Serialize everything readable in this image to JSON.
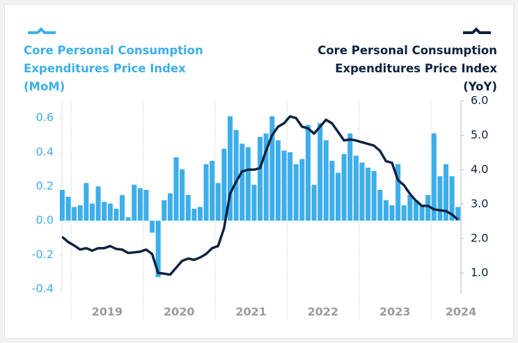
{
  "chart_data": {
    "type": "bar_line",
    "categories": [
      null,
      null,
      null,
      null,
      null,
      null,
      null,
      null,
      null,
      null,
      null,
      null,
      null,
      null,
      null,
      null,
      null,
      null,
      null,
      null,
      null,
      null,
      null,
      null,
      null,
      null,
      null,
      null,
      null,
      null,
      null,
      null,
      null,
      null,
      null,
      null,
      null,
      null,
      null,
      null,
      null,
      null,
      null,
      null,
      null,
      null,
      null,
      null,
      null,
      null,
      null,
      null,
      null,
      null,
      null,
      null,
      null,
      null,
      null,
      null,
      null,
      null,
      null,
      null,
      null,
      null,
      null
    ],
    "year_labels": [
      "2019",
      "2020",
      "2021",
      "2022",
      "2023",
      "2024"
    ],
    "series": [
      {
        "name": "Core Personal Consumption Expenditures Price Index (MoM)",
        "type": "bar",
        "color": "#3daee9",
        "values": [
          0.18,
          0.14,
          0.08,
          0.09,
          0.22,
          0.1,
          0.2,
          0.11,
          0.1,
          0.07,
          0.15,
          0.02,
          0.21,
          0.19,
          0.18,
          -0.07,
          -0.33,
          0.12,
          0.16,
          0.37,
          0.3,
          0.15,
          0.07,
          0.08,
          0.33,
          0.35,
          0.22,
          0.42,
          0.61,
          0.53,
          0.45,
          0.43,
          0.21,
          0.49,
          0.51,
          0.61,
          0.47,
          0.41,
          0.4,
          0.33,
          0.36,
          0.56,
          0.21,
          0.57,
          0.47,
          0.35,
          0.28,
          0.39,
          0.51,
          0.38,
          0.34,
          0.31,
          0.29,
          0.18,
          0.12,
          0.09,
          0.33,
          0.09,
          0.15,
          0.12,
          0.09,
          0.15,
          0.51,
          0.26,
          0.33,
          0.26,
          0.08
        ]
      },
      {
        "name": "Core Personal Consumption Expenditures Price Index (YoY)",
        "type": "line",
        "axis": "y2",
        "color": "#0c2340",
        "values": [
          2.05,
          1.9,
          1.8,
          1.68,
          1.72,
          1.65,
          1.72,
          1.72,
          1.78,
          1.7,
          1.68,
          1.58,
          1.6,
          1.62,
          1.68,
          1.55,
          1.0,
          0.98,
          0.95,
          1.15,
          1.35,
          1.42,
          1.38,
          1.45,
          1.55,
          1.72,
          1.78,
          2.3,
          3.3,
          3.65,
          3.95,
          4.0,
          4.0,
          4.05,
          4.55,
          5.0,
          5.25,
          5.35,
          5.55,
          5.5,
          5.25,
          5.2,
          5.05,
          5.25,
          5.45,
          5.35,
          5.1,
          4.85,
          4.88,
          4.85,
          4.8,
          4.75,
          4.7,
          4.55,
          4.25,
          4.2,
          3.7,
          3.55,
          3.3,
          3.1,
          2.95,
          2.95,
          2.85,
          2.82,
          2.8,
          2.7,
          2.55
        ]
      }
    ],
    "ylim": [
      -0.43,
      0.7
    ],
    "yticks": [
      0.6,
      0.4,
      0.2,
      {
        "value": 0,
        "label": "0.0"
      },
      -0.2,
      -0.4
    ],
    "y2lim": [
      0.38,
      6.0
    ],
    "y2ticks": [
      {
        "value": 6,
        "label": "6.0"
      },
      {
        "value": 5,
        "label": "5.0"
      },
      {
        "value": 4,
        "label": "4.0"
      },
      {
        "value": 3,
        "label": "3.0"
      },
      {
        "value": 2,
        "label": "2.0"
      },
      {
        "value": 1,
        "label": "1.0"
      }
    ]
  }
}
